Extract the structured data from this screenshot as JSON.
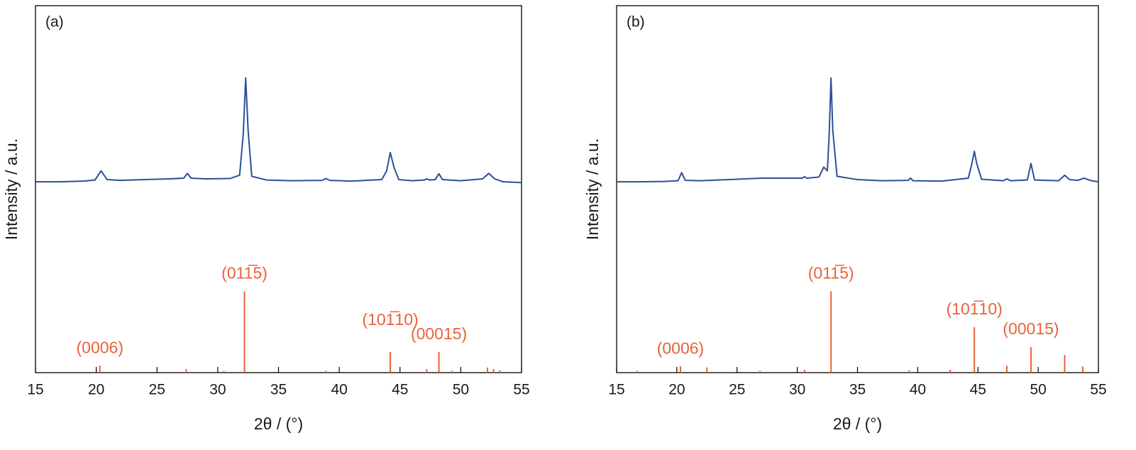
{
  "chart_data": [
    {
      "type": "line",
      "panel_label": "(a)",
      "xlabel": "2θ / (°)",
      "ylabel": "Intensity / a.u.",
      "xlim": [
        15,
        55
      ],
      "xticks": [
        15,
        20,
        25,
        30,
        35,
        40,
        45,
        50,
        55
      ],
      "ylim": [
        0,
        100
      ],
      "series": [
        {
          "color": "#2b4f9a",
          "x": [
            15,
            17,
            19,
            19.9,
            20.2,
            20.4,
            20.6,
            20.9,
            22,
            24,
            26,
            27.2,
            27.5,
            27.8,
            29,
            31,
            31.8,
            32.1,
            32.3,
            32.5,
            32.8,
            34,
            36,
            38.6,
            38.9,
            39.2,
            41,
            43.5,
            43.9,
            44.2,
            44.5,
            44.9,
            46,
            47,
            47.2,
            47.4,
            47.9,
            48.2,
            48.5,
            50,
            51.8,
            52.3,
            52.8,
            53.5,
            55
          ],
          "values": [
            52,
            52,
            52.2,
            52.5,
            54,
            55,
            54,
            52.6,
            52.4,
            52.6,
            52.8,
            53,
            54.3,
            53,
            52.8,
            52.9,
            53.8,
            65,
            80.3,
            66,
            53.5,
            52.5,
            52.3,
            52.4,
            52.9,
            52.4,
            52.2,
            52.6,
            55,
            60,
            56,
            52.6,
            52.3,
            52.5,
            52.8,
            52.5,
            52.6,
            54.2,
            52.6,
            52.3,
            52.8,
            54.3,
            52.8,
            52,
            51.8
          ]
        }
      ],
      "sticks": {
        "color": "#e8623a",
        "x": [
          20.3,
          27.4,
          30.5,
          32.2,
          38.9,
          44.2,
          47.2,
          48.2,
          49.3,
          52.2,
          52.7,
          53.2
        ],
        "values": [
          1.9,
          1,
          0.5,
          22.2,
          0.5,
          5.6,
          1,
          5.6,
          0.5,
          1.4,
          1,
          0.6
        ],
        "labels": [
          "(0006)",
          null,
          null,
          "(011̅5)",
          null,
          "(101̅10)",
          null,
          "(00015)",
          null,
          null,
          null,
          null
        ]
      }
    },
    {
      "type": "line",
      "panel_label": "(b)",
      "xlabel": "2θ / (°)",
      "ylabel": "Intensity / a.u.",
      "xlim": [
        15,
        55
      ],
      "xticks": [
        15,
        20,
        25,
        30,
        35,
        40,
        45,
        50,
        55
      ],
      "ylim": [
        0,
        100
      ],
      "series": [
        {
          "color": "#2b4f9a",
          "x": [
            15,
            17,
            19,
            20.1,
            20.4,
            20.7,
            22,
            25,
            27,
            29,
            30.4,
            30.6,
            30.8,
            31.8,
            32.2,
            32.5,
            32.65,
            32.8,
            32.95,
            33.3,
            35,
            37,
            39.2,
            39.4,
            39.6,
            42,
            44.2,
            44.5,
            44.7,
            44.9,
            45.3,
            47.1,
            47.4,
            47.7,
            49.1,
            49.4,
            49.7,
            51.7,
            52.2,
            52.6,
            53.3,
            53.8,
            54.3,
            55
          ],
          "values": [
            52,
            52,
            52.1,
            52.3,
            54.5,
            52.4,
            52.3,
            52.7,
            53,
            53,
            53,
            53.4,
            53,
            53.3,
            56,
            55,
            65,
            80.3,
            66,
            53.5,
            52.6,
            52.3,
            52.4,
            53,
            52.3,
            52.2,
            53,
            57,
            60.3,
            57,
            52.7,
            52.3,
            52.8,
            52.3,
            52.5,
            57,
            52.5,
            52.3,
            53.8,
            52.6,
            52.4,
            53,
            52.4,
            52
          ]
        }
      ],
      "sticks": {
        "color": "#e8623a",
        "x": [
          16.7,
          20.3,
          22.5,
          26.9,
          30.6,
          32.8,
          39.3,
          42.7,
          44.7,
          47.4,
          49.4,
          52.2,
          53.7
        ],
        "values": [
          0.5,
          1.7,
          1.4,
          0.5,
          0.8,
          22.2,
          0.6,
          0.8,
          12.4,
          1.9,
          7,
          4.8,
          1.7
        ],
        "labels": [
          null,
          "(0006)",
          null,
          null,
          null,
          "(011̅5)",
          null,
          null,
          "(101̅10)",
          null,
          "(00015)",
          null,
          null
        ]
      }
    }
  ]
}
